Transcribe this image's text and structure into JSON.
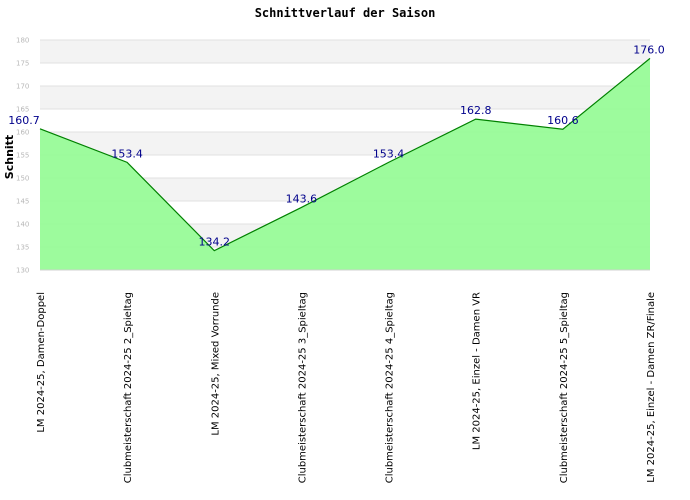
{
  "chart_data": {
    "type": "area",
    "title": "Schnittverlauf der Saison",
    "xlabel": "",
    "ylabel": "Schnitt",
    "ylim": [
      130,
      180
    ],
    "yticks": [
      130,
      135,
      140,
      145,
      150,
      155,
      160,
      165,
      170,
      175,
      180
    ],
    "grid": true,
    "categories": [
      "LM 2024-25, Damen-Doppel",
      "Clubmeisterschaft 2024-25   2_Spieltag",
      "LM 2024-25, Mixed Vorrunde",
      "Clubmeisterschaft 2024-25   3_Spieltag",
      "Clubmeisterschaft 2024-25   4_Spieltag",
      "LM 2024-25, Einzel - Damen VR",
      "Clubmeisterschaft 2024-25   5_Spieltag",
      "LM 2024-25, Einzel - Damen ZR/Finale"
    ],
    "values": [
      160.7,
      153.4,
      134.2,
      143.6,
      153.4,
      162.8,
      160.6,
      176.0
    ],
    "value_labels": [
      "160.7",
      "153.4",
      "134.2",
      "143.6",
      "153.4",
      "162.8",
      "160.6",
      "176.0"
    ],
    "colors": {
      "fill": "#98fb98",
      "line": "#008000",
      "band_light": "#f3f3f3",
      "band_white": "#ffffff",
      "label": "#00008b"
    }
  }
}
